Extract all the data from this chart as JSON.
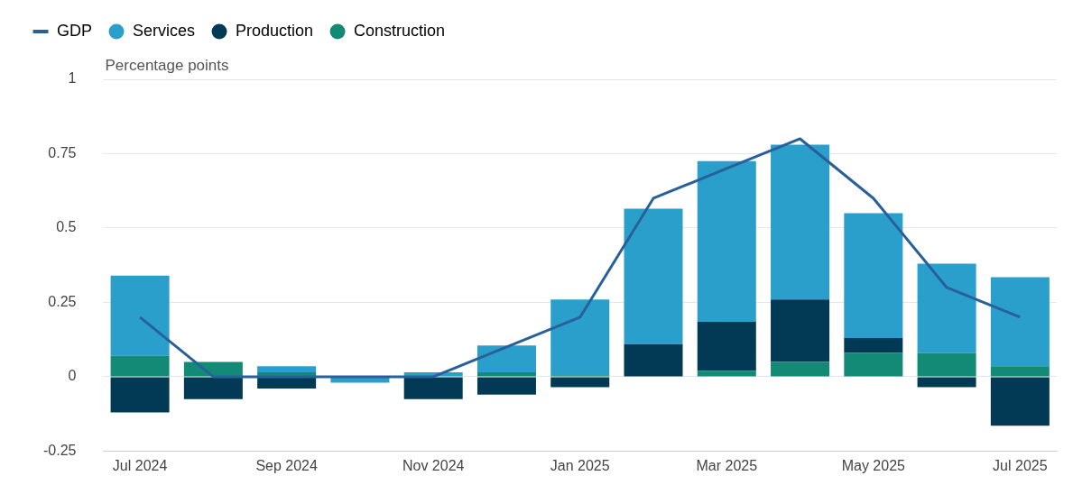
{
  "chart_data": {
    "type": "bar",
    "ylabel": "Percentage points",
    "categories": [
      "Jul 2024",
      null,
      "Sep 2024",
      null,
      "Nov 2024",
      null,
      "Jan 2025",
      null,
      "Mar 2025",
      null,
      "May 2025",
      null,
      "Jul 2025"
    ],
    "series": [
      {
        "name": "Construction",
        "color": "#128a76",
        "values": [
          0.07,
          0.05,
          0.015,
          0,
          null,
          0.015,
          0.005,
          0,
          0.02,
          0.05,
          0.08,
          0.08,
          0.035
        ]
      },
      {
        "name": "Production",
        "color": "#023a56",
        "values": [
          -0.12,
          -0.075,
          -0.04,
          0,
          -0.075,
          -0.06,
          -0.035,
          0.11,
          0.165,
          0.21,
          0.05,
          -0.035,
          -0.165
        ]
      },
      {
        "name": "Services",
        "color": "#2a9fcc",
        "values": [
          0.27,
          0,
          0.02,
          -0.02,
          0.015,
          0.09,
          0.255,
          0.455,
          0.54,
          0.52,
          0.42,
          0.3,
          0.3
        ]
      },
      {
        "name": "GDP",
        "type": "line",
        "color": "#28619a",
        "values": [
          0.2,
          0,
          0,
          0,
          0,
          0.1,
          0.2,
          0.6,
          0.7,
          0.8,
          0.6,
          0.3,
          0.2
        ]
      }
    ],
    "stacked": true,
    "ylim": [
      -0.25,
      1
    ],
    "yticks": [
      -0.25,
      0,
      0.25,
      0.5,
      0.75,
      1
    ],
    "grid": "y",
    "legend": "top left",
    "marker": "none",
    "line_style": "solid"
  }
}
